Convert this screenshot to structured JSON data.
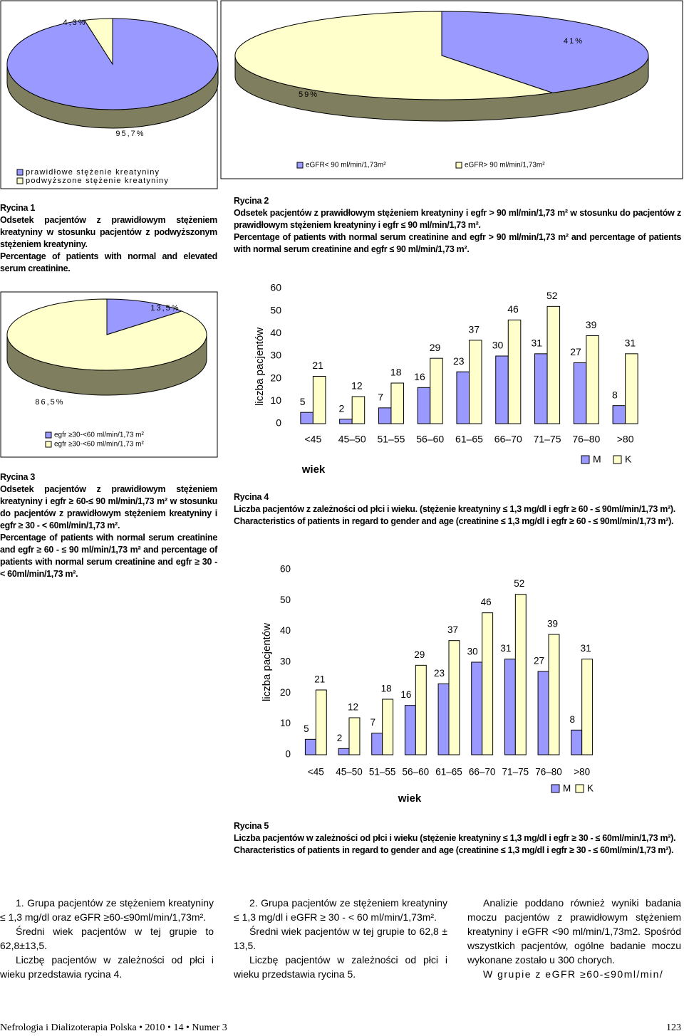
{
  "chart_data": [
    {
      "type": "pie",
      "values": [
        95.7,
        4.3
      ],
      "value_labels": [
        "95,7%",
        "4,3%"
      ],
      "colors": [
        "#9999ff",
        "#ffffcc"
      ],
      "labels": [
        "prawidłowe stężenie kreatyniny",
        "podwyższone stężenie kreatyniny"
      ]
    },
    {
      "type": "pie",
      "values": [
        41,
        59
      ],
      "value_labels": [
        "41%",
        "59%"
      ],
      "colors": [
        "#9999ff",
        "#ffffcc"
      ],
      "labels": [
        "eGFR< 90 ml/min/1,73m²",
        "eGFR> 90 ml/min/1,73m²"
      ]
    },
    {
      "type": "pie",
      "values": [
        13.5,
        86.5
      ],
      "value_labels": [
        "13,5%",
        "86,5%"
      ],
      "colors": [
        "#9999ff",
        "#ffffcc"
      ],
      "labels": [
        "egfr ≥30-<60 ml/min/1,73 m²",
        "egfr ≥30-<60 ml/min/1,73 m²"
      ]
    },
    {
      "type": "bar",
      "categories": [
        "<45",
        "45–50",
        "51–55",
        "56–60",
        "61–65",
        "66–70",
        "71–75",
        "76–80",
        ">80"
      ],
      "series": [
        {
          "name": "M",
          "color": "#9999ff",
          "values": [
            5,
            2,
            7,
            16,
            23,
            30,
            31,
            27,
            8
          ]
        },
        {
          "name": "K",
          "color": "#ffffcc",
          "values": [
            21,
            12,
            18,
            29,
            37,
            46,
            52,
            39,
            31
          ]
        }
      ],
      "ylim": [
        0,
        60
      ],
      "yticks": [
        0,
        10,
        20,
        30,
        40,
        50,
        60
      ],
      "ylabel": "liczba pacjentów",
      "xlabel": "wiek"
    },
    {
      "type": "bar",
      "categories": [
        "<45",
        "45–50",
        "51–55",
        "56–60",
        "61–65",
        "66–70",
        "71–75",
        "76–80",
        ">80"
      ],
      "series": [
        {
          "name": "M",
          "color": "#9999ff",
          "values": [
            5,
            2,
            7,
            16,
            23,
            30,
            31,
            27,
            8
          ]
        },
        {
          "name": "K",
          "color": "#ffffcc",
          "values": [
            21,
            12,
            18,
            29,
            37,
            46,
            52,
            39,
            31
          ]
        }
      ],
      "ylim": [
        0,
        60
      ],
      "yticks": [
        0,
        10,
        20,
        30,
        40,
        50,
        60
      ],
      "ylabel": "liczba pacjentów",
      "xlabel": "wiek"
    }
  ],
  "captions": [
    {
      "label": "Rycina 1",
      "pl": "Odsetek pacjentów z prawidłowym stężeniem kreatyniny w stosunku pacjentów z podwyższonym stężeniem kreatyniny.",
      "en": "Percentage of patients with normal and elevated serum creatinine."
    },
    {
      "label": "Rycina 2",
      "pl": "Odsetek pacjentów z prawidłowym stężeniem kreatyniny i egfr > 90 ml/min/1,73 m² w stosunku do pacjentów z prawidłowym stężeniem kreatyniny i egfr ≤ 90 ml/min/1,73 m².",
      "en": "Percentage of patients with normal serum creatinine and egfr > 90 ml/min/1,73 m² and percentage of patients with normal serum creatinine and egfr ≤ 90 ml/min/1,73 m²."
    },
    {
      "label": "Rycina 3",
      "pl": "Odsetek pacjentów z prawidłowym stężeniem kreatyniny i egfr ≥ 60-≤ 90 ml/min/1,73 m² w stosunku do pacjentów z prawidłowym stężeniem kreatyniny i egfr ≥ 30 - < 60ml/min/1,73 m².",
      "en": "Percentage of patients with normal serum creatinine and egfr ≥ 60 - ≤ 90 ml/min/1,73 m² and percentage of patients with normal serum creatinine and egfr ≥ 30 - < 60ml/min/1,73 m²."
    },
    {
      "label": "Rycina 4",
      "pl": "Liczba pacjentów z zależności od płci i wieku. (stężenie kreatyniny ≤ 1,3 mg/dl i egfr ≥ 60 - ≤ 90ml/min/1,73 m²).",
      "en": "Characteristics of patients in regard to gender and age (creatinine ≤ 1,3 mg/dl i egfr ≥ 60 - ≤ 90ml/min/1,73 m²)."
    },
    {
      "label": "Rycina 5",
      "pl": "Liczba pacjentów w zależności od płci i wieku (stężenie kreatyniny ≤ 1,3 mg/dl i egfr ≥ 30 - ≤ 60ml/min/1,73 m²).",
      "en": "Characteristics of patients in regard to gender and age (creatinine ≤ 1,3 mg/dl i egfr ≥ 30 - ≤ 60ml/min/1,73 m²)."
    }
  ],
  "columns": [
    [
      "1. Grupa pacjentów ze stężeniem kreatyniny ≤ 1,3 mg/dl oraz eGFR ≥60-≤90ml/min/1,73m².",
      "Średni wiek pacjentów w tej grupie to 62,8±13,5.",
      "Liczbę pacjentów w zależności od płci i wieku przedstawia rycina 4."
    ],
    [
      "2. Grupa pacjentów ze stężeniem kreatyniny ≤ 1,3 mg/dl i eGFR ≥ 30 - < 60 ml/min/1,73m².",
      "Średni wiek pacjentów w tej grupie to 62,8 ± 13,5.",
      "Liczbę pacjentów w zależności od płci i wieku przedstawia rycina 5."
    ],
    [
      "Analizie poddano również wyniki badania moczu pacjentów z prawidłowym stężeniem kreatyniny i eGFR <90 ml/min/1,73m2. Spośród wszystkich pacjentów, ogólne badanie moczu wykonane zostało u 300 chorych.",
      "W grupie z eGFR ≥60-≤90ml/min/"
    ]
  ],
  "footer": {
    "journal": "Nefrologia i Dializoterapia Polska • 2010 • 14 • Numer 3",
    "page": "123"
  }
}
